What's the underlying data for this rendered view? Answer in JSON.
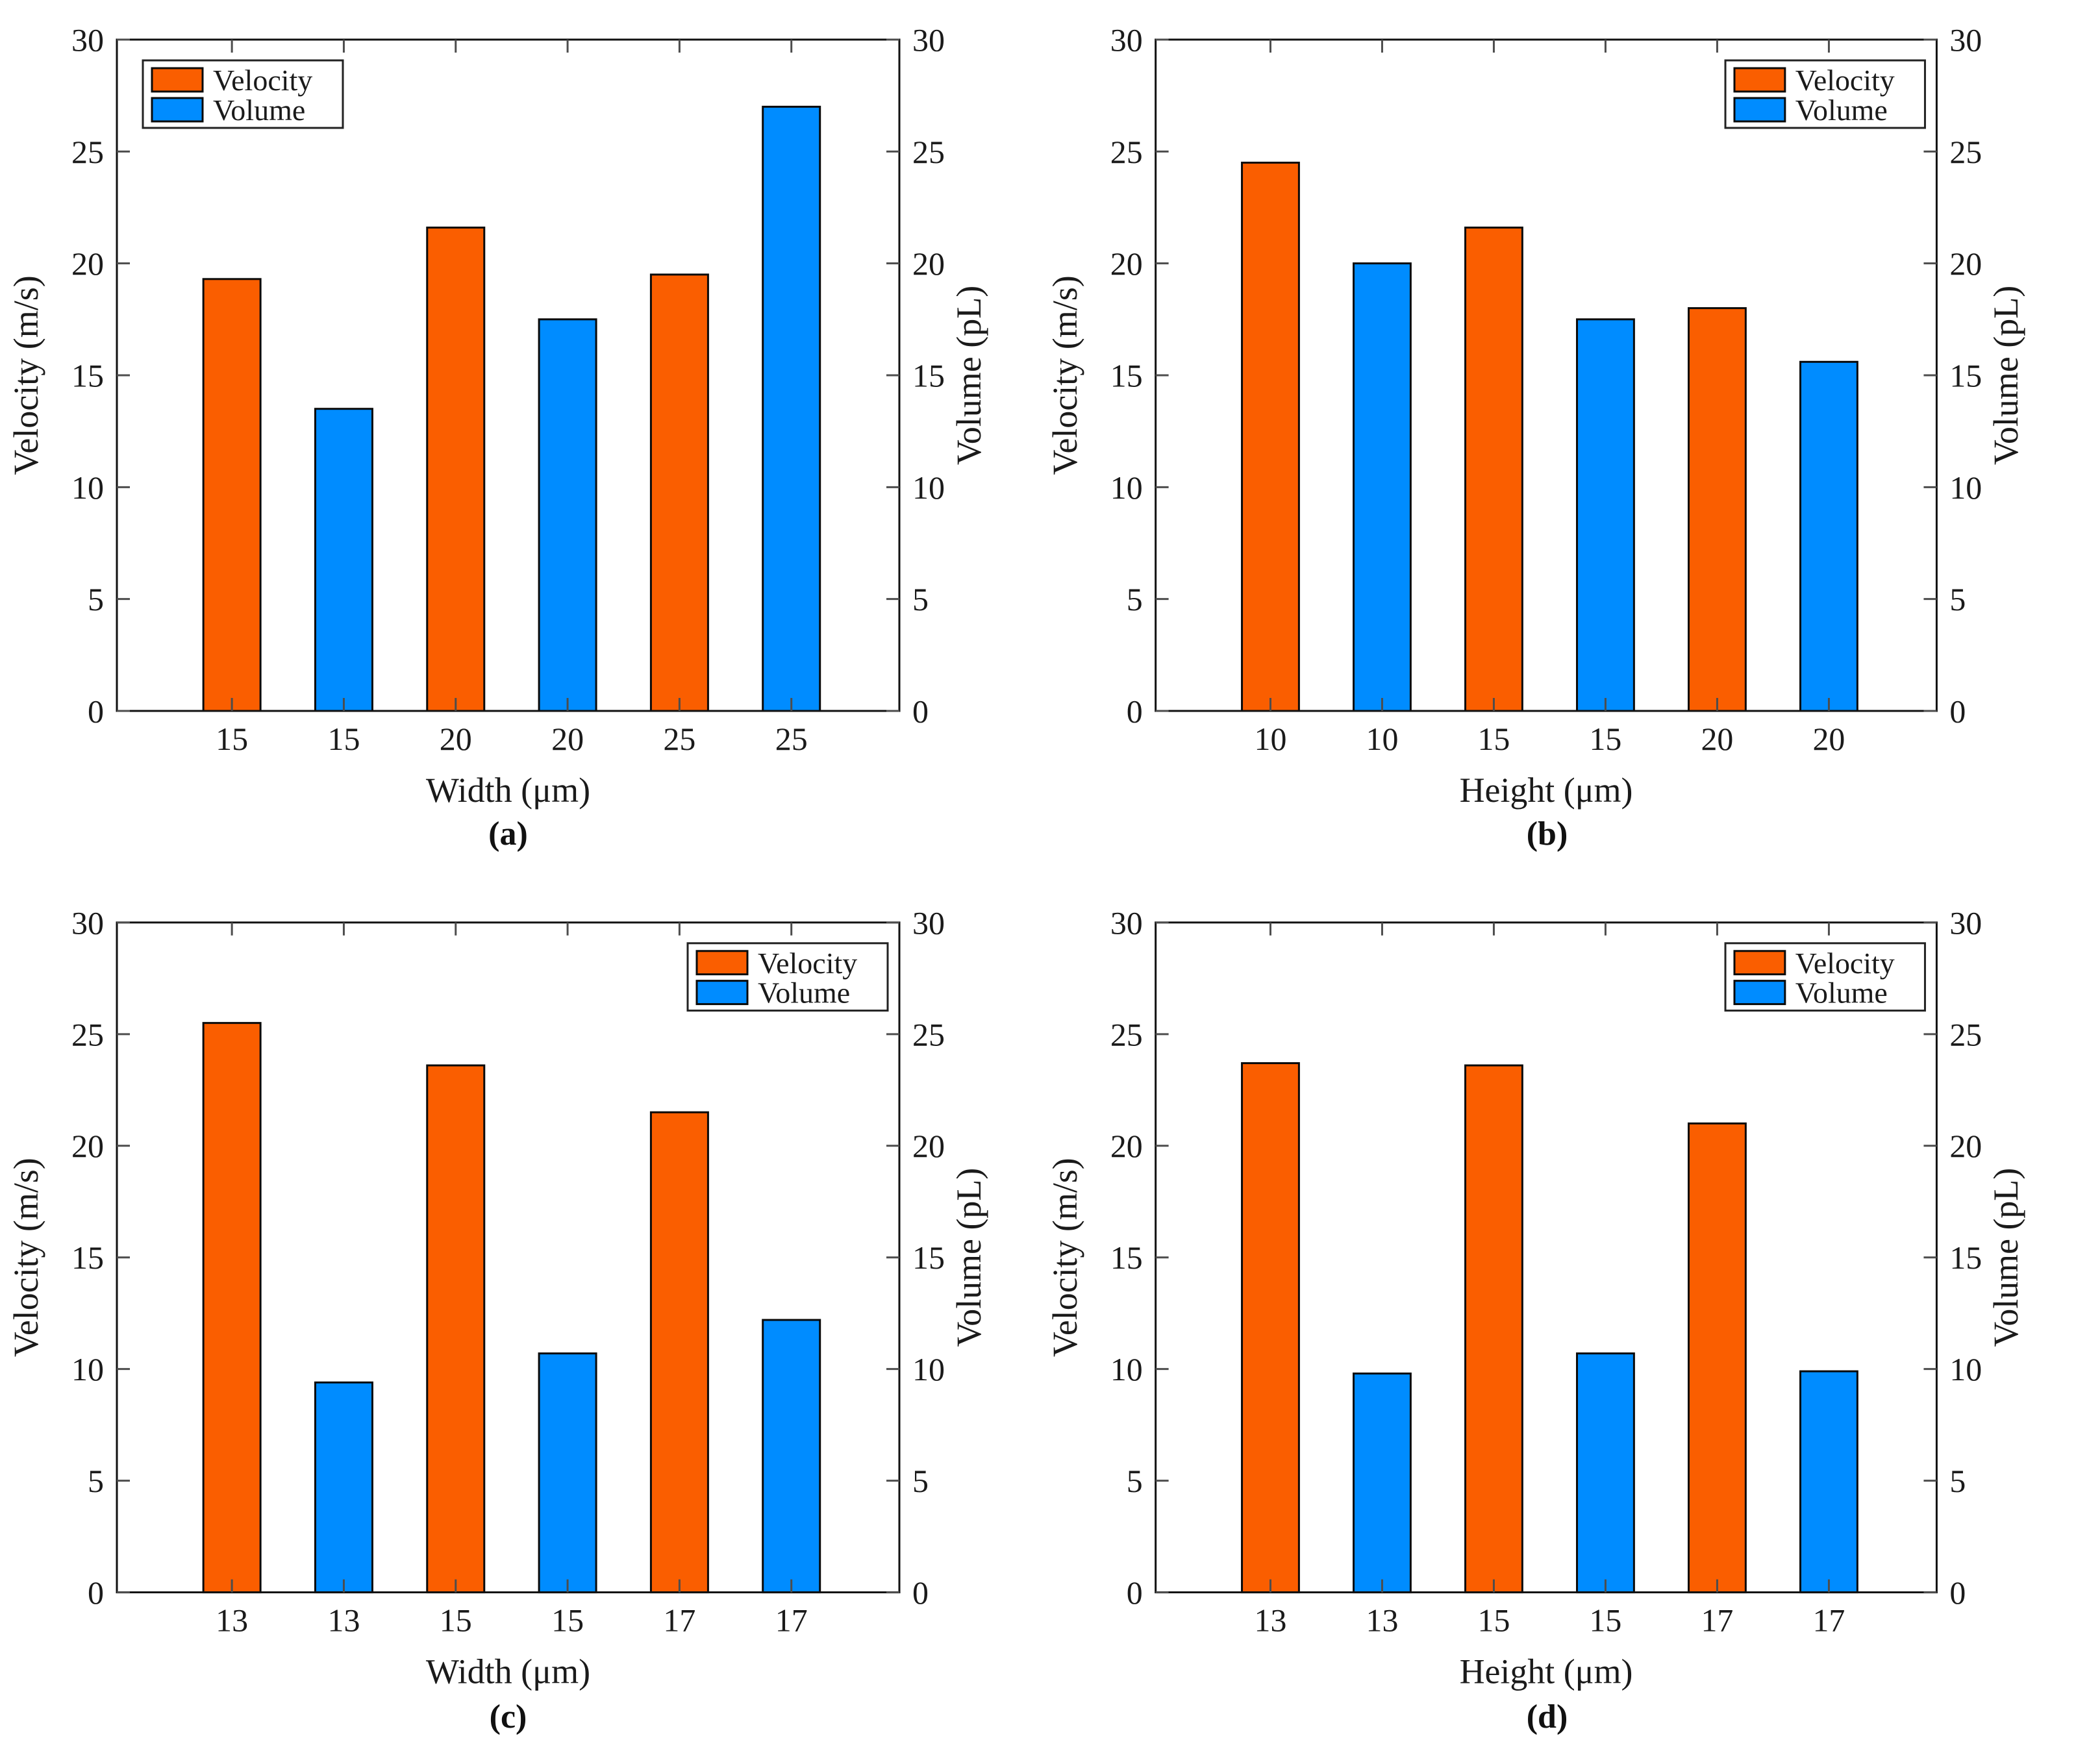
{
  "series": [
    {
      "name": "Velocity",
      "color": "#FA5E00"
    },
    {
      "name": "Volume",
      "color": "#008CFF"
    }
  ],
  "frame_color": "#111111",
  "tick_color": "#4d4d4d",
  "chart_data": [
    {
      "type": "bar",
      "panel": "a",
      "caption": "(a)",
      "xlabel": "Width (μm)",
      "ylabel_left": "Velocity (m/s)",
      "ylabel_right": "Volume (pL)",
      "ylim": [
        0,
        30
      ],
      "yticks": [
        0,
        5,
        10,
        15,
        20,
        25,
        30
      ],
      "legend_position": "top-left",
      "legend_entries": [
        "Velocity",
        "Volume"
      ],
      "bars": [
        {
          "category": "15",
          "series": "Velocity",
          "value": 19.3
        },
        {
          "category": "15",
          "series": "Volume",
          "value": 13.5
        },
        {
          "category": "20",
          "series": "Velocity",
          "value": 21.6
        },
        {
          "category": "20",
          "series": "Volume",
          "value": 17.5
        },
        {
          "category": "25",
          "series": "Velocity",
          "value": 19.5
        },
        {
          "category": "25",
          "series": "Volume",
          "value": 27.0
        }
      ]
    },
    {
      "type": "bar",
      "panel": "b",
      "caption": "(b)",
      "xlabel": "Height (μm)",
      "ylabel_left": "Velocity (m/s)",
      "ylabel_right": "Volume (pL)",
      "ylim": [
        0,
        30
      ],
      "yticks": [
        0,
        5,
        10,
        15,
        20,
        25,
        30
      ],
      "legend_position": "top-right",
      "legend_entries": [
        "Velocity",
        "Volume"
      ],
      "bars": [
        {
          "category": "10",
          "series": "Velocity",
          "value": 24.5
        },
        {
          "category": "10",
          "series": "Volume",
          "value": 20.0
        },
        {
          "category": "15",
          "series": "Velocity",
          "value": 21.6
        },
        {
          "category": "15",
          "series": "Volume",
          "value": 17.5
        },
        {
          "category": "20",
          "series": "Velocity",
          "value": 18.0
        },
        {
          "category": "20",
          "series": "Volume",
          "value": 15.6
        }
      ]
    },
    {
      "type": "bar",
      "panel": "c",
      "caption": "(c)",
      "xlabel": "Width (μm)",
      "ylabel_left": "Velocity (m/s)",
      "ylabel_right": "Volume (pL)",
      "ylim": [
        0,
        30
      ],
      "yticks": [
        0,
        5,
        10,
        15,
        20,
        25,
        30
      ],
      "legend_position": "top-right",
      "legend_entries": [
        "Velocity",
        "Volume"
      ],
      "bars": [
        {
          "category": "13",
          "series": "Velocity",
          "value": 25.5
        },
        {
          "category": "13",
          "series": "Volume",
          "value": 9.4
        },
        {
          "category": "15",
          "series": "Velocity",
          "value": 23.6
        },
        {
          "category": "15",
          "series": "Volume",
          "value": 10.7
        },
        {
          "category": "17",
          "series": "Velocity",
          "value": 21.5
        },
        {
          "category": "17",
          "series": "Volume",
          "value": 12.2
        }
      ]
    },
    {
      "type": "bar",
      "panel": "d",
      "caption": "(d)",
      "xlabel": "Height (μm)",
      "ylabel_left": "Velocity (m/s)",
      "ylabel_right": "Volume (pL)",
      "ylim": [
        0,
        30
      ],
      "yticks": [
        0,
        5,
        10,
        15,
        20,
        25,
        30
      ],
      "legend_position": "top-right",
      "legend_entries": [
        "Velocity",
        "Volume"
      ],
      "bars": [
        {
          "category": "13",
          "series": "Velocity",
          "value": 23.7
        },
        {
          "category": "13",
          "series": "Volume",
          "value": 9.8
        },
        {
          "category": "15",
          "series": "Velocity",
          "value": 23.6
        },
        {
          "category": "15",
          "series": "Volume",
          "value": 10.7
        },
        {
          "category": "17",
          "series": "Velocity",
          "value": 21.0
        },
        {
          "category": "17",
          "series": "Volume",
          "value": 9.9
        }
      ]
    }
  ]
}
